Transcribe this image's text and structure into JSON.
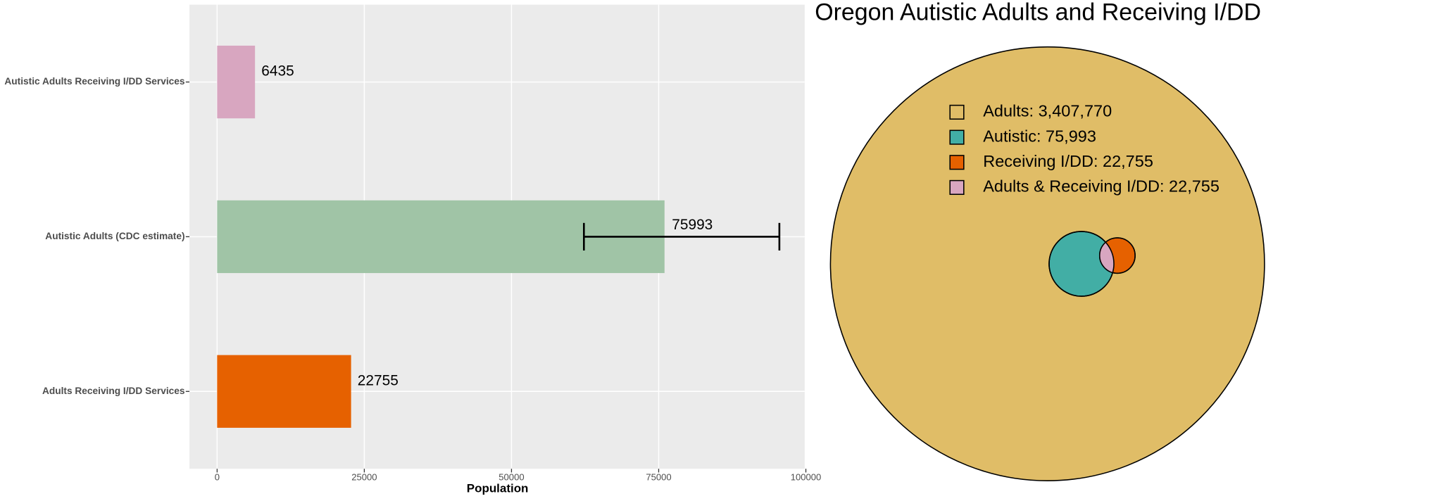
{
  "chart_data": [
    {
      "type": "bar",
      "orientation": "horizontal",
      "x_label": "Population",
      "categories": [
        "Autistic Adults Receiving I/DD Services",
        "Autistic Adults (CDC estimate)",
        "Adults Receiving I/DD Services"
      ],
      "series": [
        {
          "values": [
            6435,
            75993,
            22755
          ],
          "colors": [
            "#d8a6c0",
            "#a0c4a6",
            "#e66100"
          ]
        }
      ],
      "error_low": [
        null,
        62300,
        null
      ],
      "error_high": [
        null,
        95500,
        null
      ],
      "xlim": [
        -4700,
        99800
      ],
      "xticks": [
        0,
        25000,
        50000,
        75000,
        100000
      ],
      "grid": true
    },
    {
      "type": "venn",
      "title": "Oregon Autistic Adults and Receiving I/DD",
      "sets": [
        {
          "label": "Adults: 3,407,770",
          "value": 3407770,
          "color": "#e0bd67"
        },
        {
          "label": "Autistic: 75,993",
          "value": 75993,
          "color": "#42aea5"
        },
        {
          "label": "Receiving I/DD: 22,755",
          "value": 22755,
          "color": "#e66100"
        },
        {
          "label": "Adults & Receiving I/DD: 22,755",
          "value": 22755,
          "color": "#d8a6c0"
        }
      ]
    }
  ]
}
